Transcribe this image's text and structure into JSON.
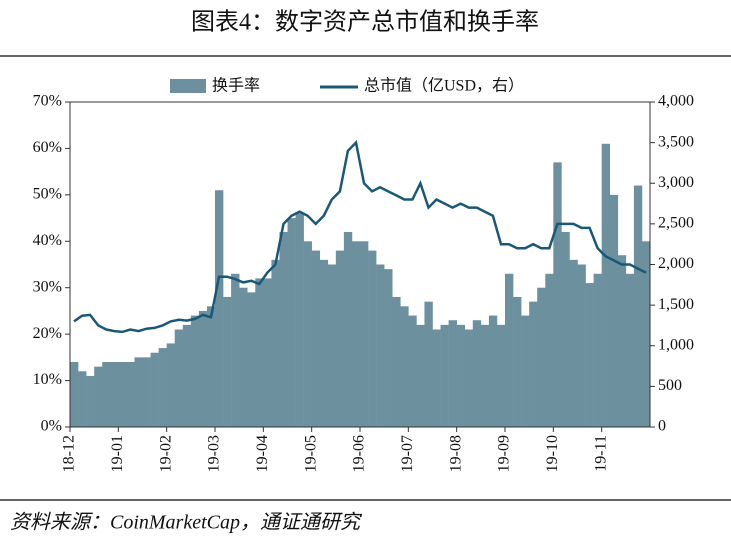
{
  "chart_data": {
    "type": "bar-line",
    "title": "图表4：数字资产总市值和换手率",
    "source": "资料来源：CoinMarketCap，通证通研究",
    "categories": [
      "18-12",
      null,
      null,
      null,
      null,
      null,
      "19-01",
      null,
      null,
      null,
      null,
      null,
      "19-02",
      null,
      null,
      null,
      null,
      null,
      "19-03",
      null,
      null,
      null,
      null,
      null,
      "19-04",
      null,
      null,
      null,
      null,
      null,
      "19-05",
      null,
      null,
      null,
      null,
      null,
      "19-06",
      null,
      null,
      null,
      null,
      null,
      "19-07",
      null,
      null,
      null,
      null,
      null,
      "19-08",
      null,
      null,
      null,
      null,
      null,
      "19-09",
      null,
      null,
      null,
      null,
      null,
      "19-10",
      null,
      null,
      null,
      null,
      null,
      "19-11",
      null,
      null,
      null,
      null,
      null
    ],
    "series": [
      {
        "name": "换手率",
        "color": "#6d909f",
        "kind": "bar",
        "axis": "y",
        "values": [
          14,
          12,
          11,
          13,
          14,
          14,
          14,
          14,
          15,
          15,
          16,
          17,
          18,
          21,
          22,
          24,
          25,
          26,
          51,
          28,
          33,
          30,
          29,
          32,
          32,
          36,
          42,
          45,
          46,
          40,
          38,
          36,
          35,
          38,
          42,
          40,
          40,
          38,
          35,
          34,
          28,
          26,
          24,
          22,
          27,
          21,
          22,
          23,
          22,
          21,
          23,
          22,
          24,
          22,
          33,
          28,
          24,
          27,
          30,
          33,
          57,
          42,
          36,
          35,
          31,
          33,
          61,
          50,
          37,
          33,
          52,
          40
        ]
      },
      {
        "name": "总市值（亿USD，右）",
        "color": "#1a5878",
        "kind": "line",
        "axis": "y2",
        "values": [
          1300,
          1370,
          1380,
          1250,
          1200,
          1180,
          1170,
          1200,
          1180,
          1210,
          1220,
          1250,
          1300,
          1320,
          1310,
          1330,
          1380,
          1350,
          1850,
          1850,
          1820,
          1780,
          1800,
          1760,
          1900,
          2000,
          2500,
          2600,
          2650,
          2600,
          2500,
          2600,
          2800,
          2900,
          3400,
          3500,
          3000,
          2900,
          2950,
          2900,
          2850,
          2800,
          2800,
          3000,
          2700,
          2800,
          2750,
          2700,
          2750,
          2700,
          2700,
          2650,
          2600,
          2250,
          2250,
          2200,
          2200,
          2250,
          2200,
          2200,
          2500,
          2500,
          2500,
          2450,
          2450,
          2200,
          2100,
          2050,
          2000,
          2000,
          1950,
          1900
        ]
      }
    ],
    "ylim": [
      0,
      70
    ],
    "yticks": [
      {
        "value": 0,
        "label": "0%"
      },
      {
        "value": 10,
        "label": "10%"
      },
      {
        "value": 20,
        "label": "20%"
      },
      {
        "value": 30,
        "label": "30%"
      },
      {
        "value": 40,
        "label": "40%"
      },
      {
        "value": 50,
        "label": "50%"
      },
      {
        "value": 60,
        "label": "60%"
      },
      {
        "value": 70,
        "label": "70%"
      }
    ],
    "y2lim": [
      0,
      4000
    ],
    "y2ticks": [
      0,
      500,
      {
        "value": 1000,
        "label": "1,000"
      },
      {
        "value": 1500,
        "label": "1,500"
      },
      {
        "value": 2000,
        "label": "2,000"
      },
      {
        "value": 2500,
        "label": "2,500"
      },
      {
        "value": 3000,
        "label": "3,000"
      },
      {
        "value": 3500,
        "label": "3,500"
      },
      {
        "value": 4000,
        "label": "4,000"
      }
    ]
  }
}
